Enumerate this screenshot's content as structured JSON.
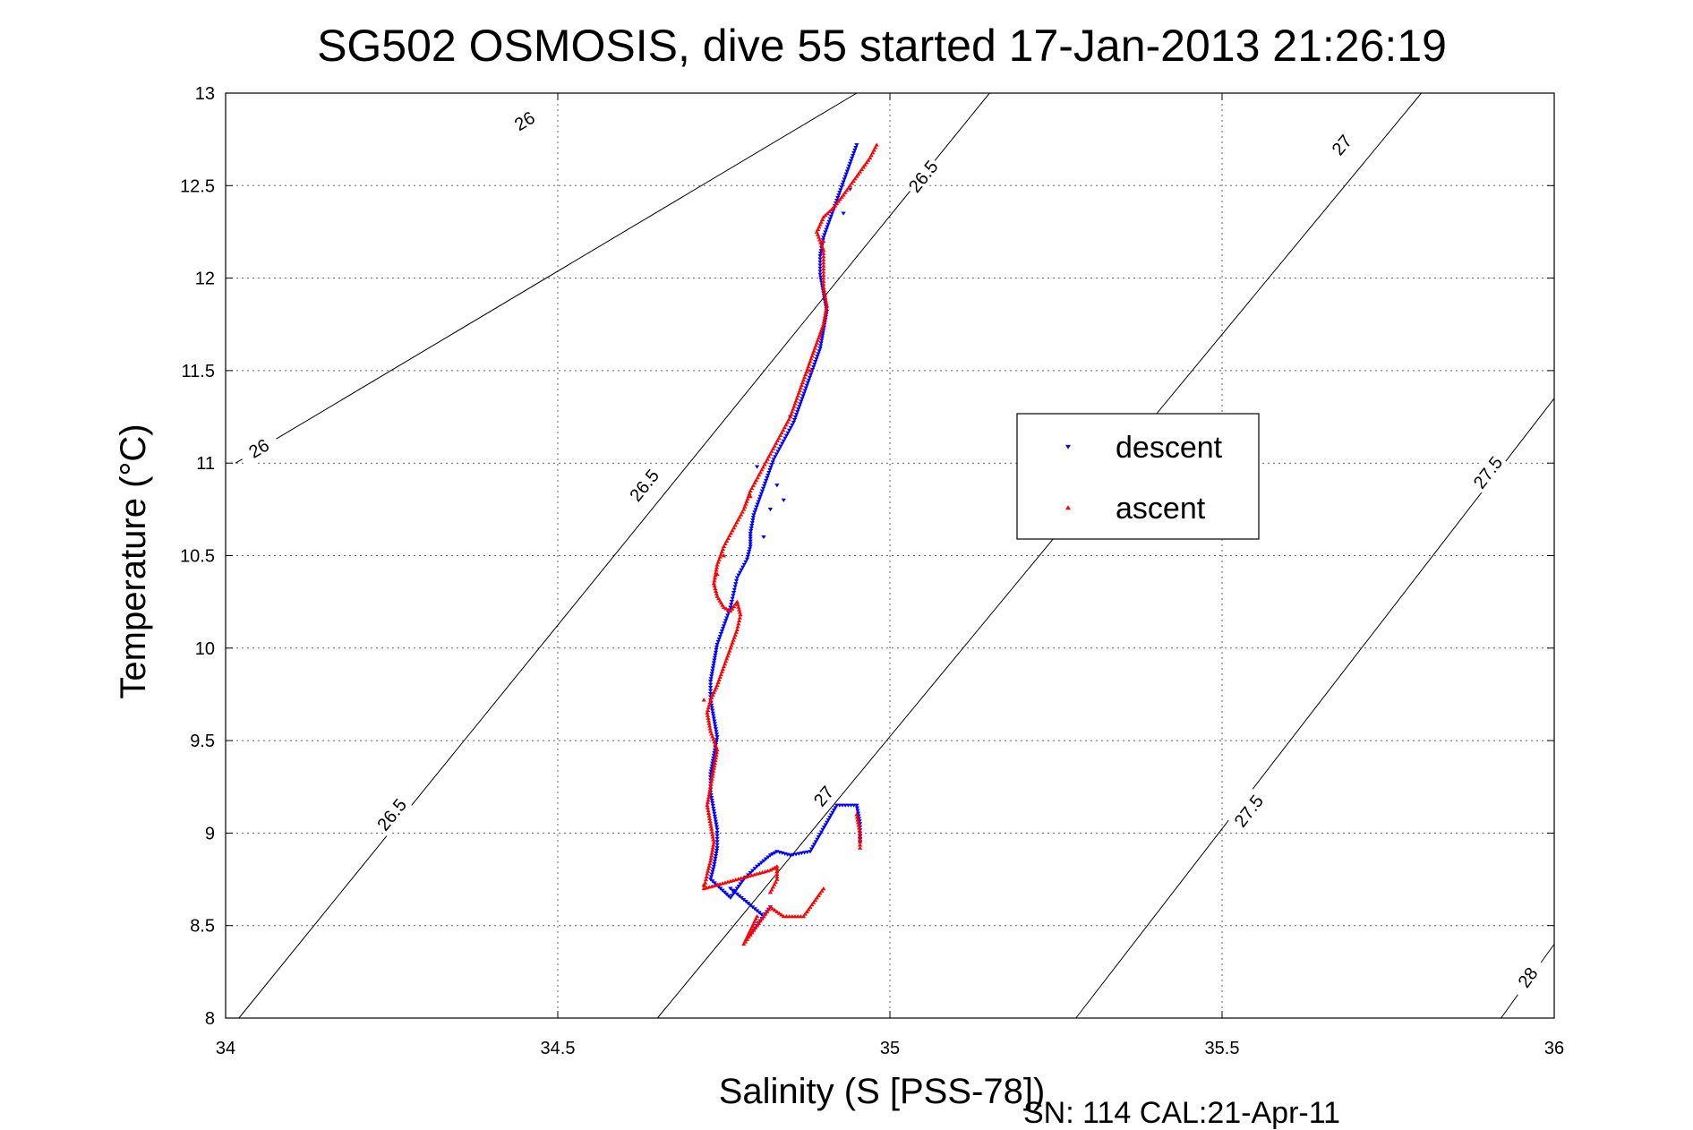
{
  "chart_data": {
    "type": "scatter",
    "title": "SG502 OSMOSIS, dive 55 started 17-Jan-2013 21:26:19",
    "xlabel": "Salinity (S [PSS-78])",
    "ylabel": "Temperature (°C)",
    "xlim": [
      34,
      36
    ],
    "ylim": [
      8,
      13
    ],
    "xticks": [
      34,
      34.5,
      35,
      35.5,
      36
    ],
    "xtick_labels": [
      "34",
      "34.5",
      "35",
      "35.5",
      "36"
    ],
    "yticks": [
      8,
      8.5,
      9,
      9.5,
      10,
      10.5,
      11,
      11.5,
      12,
      12.5,
      13
    ],
    "ytick_labels": [
      "8",
      "8.5",
      "9",
      "9.5",
      "10",
      "10.5",
      "11",
      "11.5",
      "12",
      "12.5",
      "13"
    ],
    "grid": true,
    "legend_position": "right",
    "annotation": "SN: 114  CAL:21-Apr-11",
    "contours": [
      {
        "label": "26",
        "line": [
          [
            34.015,
            11.0
          ],
          [
            34.95,
            13.0
          ]
        ],
        "labels": [
          {
            "text": "26",
            "x": 34.05,
            "y": 11.08
          },
          {
            "text": "26",
            "x": 34.45,
            "y": 12.85
          }
        ]
      },
      {
        "label": "26.5",
        "line": [
          [
            34.02,
            8.0
          ],
          [
            35.15,
            13.0
          ]
        ],
        "labels": [
          {
            "text": "26.5",
            "x": 34.25,
            "y": 9.1
          },
          {
            "text": "26.5",
            "x": 34.63,
            "y": 10.88
          },
          {
            "text": "26.5",
            "x": 35.05,
            "y": 12.55
          }
        ]
      },
      {
        "label": "27",
        "line": [
          [
            34.65,
            8.0
          ],
          [
            35.8,
            13.0
          ]
        ],
        "labels": [
          {
            "text": "27",
            "x": 34.9,
            "y": 9.2
          },
          {
            "text": "27",
            "x": 35.68,
            "y": 12.72
          }
        ]
      },
      {
        "label": "27.5",
        "line": [
          [
            35.28,
            8.0
          ],
          [
            36.0,
            11.35
          ]
        ],
        "labels": [
          {
            "text": "27.5",
            "x": 35.54,
            "y": 9.12
          },
          {
            "text": "27.5",
            "x": 35.9,
            "y": 10.95
          }
        ]
      },
      {
        "label": "28",
        "line": [
          [
            35.92,
            8.0
          ],
          [
            36.0,
            8.4
          ]
        ],
        "labels": [
          {
            "text": "28",
            "x": 35.96,
            "y": 8.22
          }
        ]
      }
    ],
    "series": [
      {
        "name": "descent",
        "color": "#0000ff",
        "marker": "triangle-down",
        "path": [
          [
            34.95,
            12.72
          ],
          [
            34.94,
            12.62
          ],
          [
            34.93,
            12.52
          ],
          [
            34.92,
            12.42
          ],
          [
            34.91,
            12.32
          ],
          [
            34.9,
            12.22
          ],
          [
            34.895,
            12.12
          ],
          [
            34.895,
            12.02
          ],
          [
            34.9,
            11.92
          ],
          [
            34.905,
            11.82
          ],
          [
            34.9,
            11.72
          ],
          [
            34.895,
            11.62
          ],
          [
            34.885,
            11.52
          ],
          [
            34.875,
            11.42
          ],
          [
            34.865,
            11.32
          ],
          [
            34.855,
            11.22
          ],
          [
            34.84,
            11.12
          ],
          [
            34.825,
            11.02
          ],
          [
            34.815,
            10.92
          ],
          [
            34.805,
            10.82
          ],
          [
            34.795,
            10.72
          ],
          [
            34.79,
            10.62
          ],
          [
            34.79,
            10.55
          ],
          [
            34.785,
            10.48
          ],
          [
            34.77,
            10.38
          ],
          [
            34.765,
            10.3
          ],
          [
            34.76,
            10.22
          ],
          [
            34.75,
            10.12
          ],
          [
            34.74,
            10.02
          ],
          [
            34.735,
            9.92
          ],
          [
            34.73,
            9.82
          ],
          [
            34.73,
            9.72
          ],
          [
            34.735,
            9.62
          ],
          [
            34.74,
            9.52
          ],
          [
            34.735,
            9.42
          ],
          [
            34.73,
            9.32
          ],
          [
            34.73,
            9.22
          ],
          [
            34.735,
            9.12
          ],
          [
            34.74,
            9.02
          ],
          [
            34.74,
            8.92
          ],
          [
            34.735,
            8.82
          ],
          [
            34.73,
            8.75
          ],
          [
            34.745,
            8.7
          ],
          [
            34.76,
            8.65
          ],
          [
            34.78,
            8.75
          ],
          [
            34.8,
            8.82
          ],
          [
            34.82,
            8.88
          ],
          [
            34.83,
            8.9
          ],
          [
            34.85,
            8.88
          ],
          [
            34.88,
            8.9
          ],
          [
            34.92,
            9.15
          ],
          [
            34.95,
            9.15
          ],
          [
            34.955,
            9.05
          ],
          [
            34.955,
            8.95
          ],
          [
            34.82,
            8.6
          ],
          [
            34.8,
            8.5
          ],
          [
            34.79,
            8.45
          ],
          [
            34.81,
            8.55
          ],
          [
            34.76,
            8.7
          ]
        ],
        "extra": [
          [
            34.93,
            12.35
          ],
          [
            34.94,
            12.48
          ],
          [
            34.85,
            11.25
          ],
          [
            34.8,
            10.98
          ],
          [
            34.82,
            10.75
          ],
          [
            34.81,
            10.6
          ],
          [
            34.83,
            10.88
          ],
          [
            34.84,
            10.8
          ]
        ]
      },
      {
        "name": "ascent",
        "color": "#ff0000",
        "marker": "triangle-up",
        "path": [
          [
            34.98,
            12.72
          ],
          [
            34.97,
            12.65
          ],
          [
            34.95,
            12.55
          ],
          [
            34.93,
            12.45
          ],
          [
            34.915,
            12.38
          ],
          [
            34.9,
            12.33
          ],
          [
            34.89,
            12.25
          ],
          [
            34.9,
            12.15
          ],
          [
            34.9,
            12.05
          ],
          [
            34.9,
            11.95
          ],
          [
            34.905,
            11.85
          ],
          [
            34.9,
            11.75
          ],
          [
            34.89,
            11.65
          ],
          [
            34.88,
            11.55
          ],
          [
            34.87,
            11.45
          ],
          [
            34.86,
            11.35
          ],
          [
            34.85,
            11.25
          ],
          [
            34.835,
            11.15
          ],
          [
            34.82,
            11.05
          ],
          [
            34.805,
            10.95
          ],
          [
            34.79,
            10.85
          ],
          [
            34.78,
            10.75
          ],
          [
            34.765,
            10.65
          ],
          [
            34.75,
            10.55
          ],
          [
            34.74,
            10.45
          ],
          [
            34.735,
            10.35
          ],
          [
            34.74,
            10.28
          ],
          [
            34.75,
            10.22
          ],
          [
            34.76,
            10.2
          ],
          [
            34.77,
            10.25
          ],
          [
            34.775,
            10.18
          ],
          [
            34.77,
            10.1
          ],
          [
            34.76,
            10.0
          ],
          [
            34.75,
            9.9
          ],
          [
            34.74,
            9.8
          ],
          [
            34.73,
            9.72
          ],
          [
            34.725,
            9.65
          ],
          [
            34.73,
            9.55
          ],
          [
            34.74,
            9.45
          ],
          [
            34.735,
            9.35
          ],
          [
            34.73,
            9.25
          ],
          [
            34.725,
            9.15
          ],
          [
            34.73,
            9.05
          ],
          [
            34.735,
            8.95
          ],
          [
            34.73,
            8.85
          ],
          [
            34.725,
            8.78
          ],
          [
            34.72,
            8.7
          ],
          [
            34.74,
            8.72
          ],
          [
            34.76,
            8.74
          ],
          [
            34.78,
            8.76
          ],
          [
            34.8,
            8.78
          ],
          [
            34.82,
            8.8
          ],
          [
            34.83,
            8.82
          ],
          [
            34.83,
            8.75
          ],
          [
            34.82,
            8.68
          ],
          [
            34.95,
            9.1
          ],
          [
            34.955,
            9.0
          ],
          [
            34.955,
            8.92
          ],
          [
            34.8,
            8.55
          ],
          [
            34.78,
            8.4
          ],
          [
            34.79,
            8.45
          ],
          [
            34.82,
            8.6
          ],
          [
            34.84,
            8.55
          ],
          [
            34.87,
            8.55
          ],
          [
            34.9,
            8.7
          ]
        ],
        "extra": [
          [
            34.96,
            12.6
          ],
          [
            34.9,
            12.2
          ],
          [
            34.88,
            11.5
          ],
          [
            34.79,
            10.82
          ],
          [
            34.75,
            10.5
          ],
          [
            34.74,
            10.4
          ],
          [
            34.72,
            9.72
          ],
          [
            34.72,
            8.72
          ]
        ]
      }
    ]
  }
}
